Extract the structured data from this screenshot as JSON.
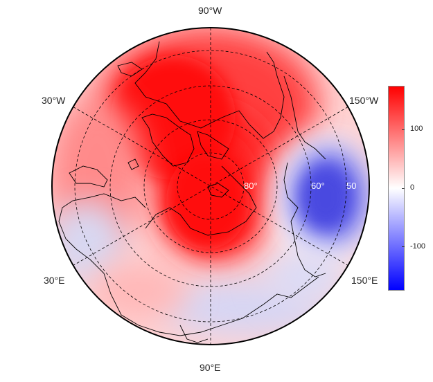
{
  "map": {
    "projection": "north-polar-stereographic",
    "meridian_labels": {
      "top": "90°W",
      "upper_left": "30°W",
      "upper_right": "150°W",
      "lower_left": "30°E",
      "lower_right": "150°E",
      "bottom": "90°E"
    },
    "latitude_labels": [
      "80°",
      "60°",
      "50"
    ],
    "colors": {
      "positive": "#ff0000",
      "neutral": "#ffffff",
      "negative": "#0000ff",
      "grid": "#000000",
      "coast": "#000000"
    }
  },
  "colorbar": {
    "ticks": [
      "100",
      "0",
      "-100"
    ],
    "tick_values": [
      100,
      0,
      -100
    ],
    "min": -175,
    "max": 175
  }
}
